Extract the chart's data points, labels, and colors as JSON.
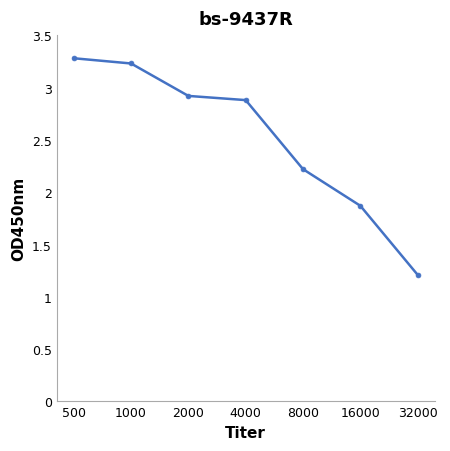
{
  "title": "bs-9437R",
  "xlabel": "Titer",
  "ylabel": "OD450nm",
  "x_values": [
    500,
    1000,
    2000,
    4000,
    8000,
    16000,
    32000
  ],
  "y_values": [
    3.28,
    3.23,
    2.92,
    2.88,
    2.22,
    1.87,
    1.21
  ],
  "line_color": "#4472c4",
  "marker": "o",
  "marker_size": 3.5,
  "ylim": [
    0,
    3.5
  ],
  "yticks": [
    0,
    0.5,
    1.0,
    1.5,
    2.0,
    2.5,
    3.0,
    3.5
  ],
  "title_fontsize": 13,
  "label_fontsize": 11,
  "tick_fontsize": 9,
  "background_color": "#ffffff",
  "spine_color": "#aaaaaa",
  "linewidth": 1.8
}
